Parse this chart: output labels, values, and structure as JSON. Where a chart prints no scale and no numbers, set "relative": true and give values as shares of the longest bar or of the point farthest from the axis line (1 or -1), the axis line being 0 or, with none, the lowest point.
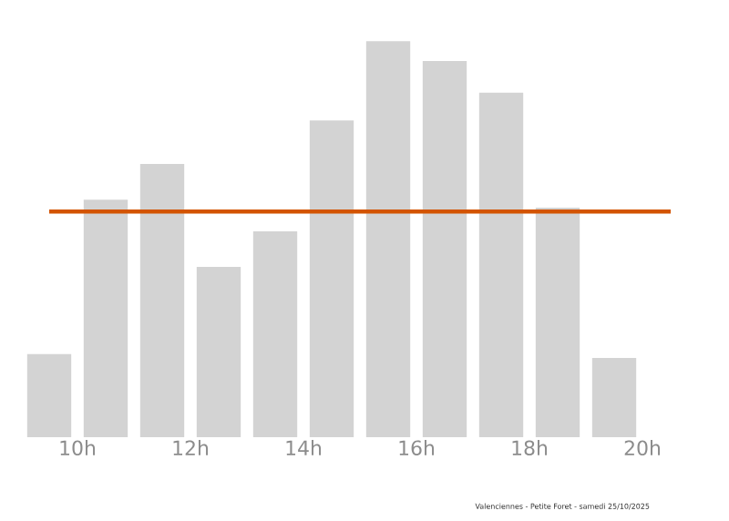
{
  "chart_data": {
    "type": "bar",
    "relative": true,
    "x": [
      9.5,
      10.5,
      11.5,
      12.5,
      13.5,
      14.5,
      15.5,
      16.5,
      17.5,
      18.5,
      19.5
    ],
    "values": [
      0.21,
      0.6,
      0.69,
      0.43,
      0.52,
      0.8,
      1,
      0.95,
      0.87,
      0.58,
      0.2
    ],
    "color": "#d3d3d3",
    "xlim": [
      9,
      20.5
    ],
    "xticks": [
      {
        "value": 10,
        "label": "10h"
      },
      {
        "value": 12,
        "label": "12h"
      },
      {
        "value": 14,
        "label": "14h"
      },
      {
        "value": 16,
        "label": "16h"
      },
      {
        "value": 18,
        "label": "18h"
      },
      {
        "value": 20,
        "label": "20h"
      }
    ],
    "ref_lines": [
      {
        "axis": "y",
        "value": 0.57,
        "color": "#d35400"
      }
    ],
    "annotations": [
      "Valenciennes - Petite Foret - samedi 25/10/2025"
    ]
  }
}
